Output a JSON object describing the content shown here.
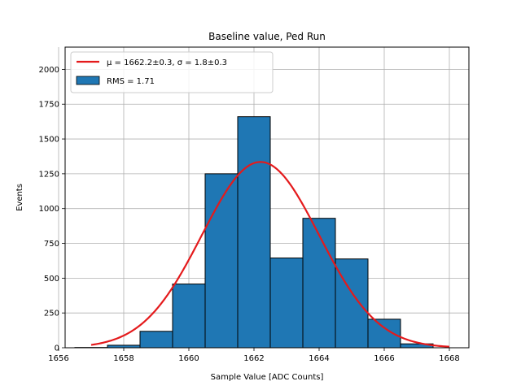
{
  "chart_data": {
    "type": "bar",
    "title": "Baseline value, Ped Run",
    "xlabel": "Sample Value [ADC Counts]",
    "ylabel": "Events",
    "xlim": [
      1656.2,
      1668.6
    ],
    "ylim": [
      0,
      2160
    ],
    "xticks": [
      1656,
      1658,
      1660,
      1662,
      1664,
      1666,
      1668
    ],
    "yticks": [
      0,
      250,
      500,
      750,
      1000,
      1250,
      1500,
      1750,
      2000
    ],
    "grid": true,
    "legend_position": "top-left",
    "histogram": {
      "name": "RMS = 1.71",
      "color": "#1f77b4",
      "edge_color": "#000000",
      "bins": [
        {
          "left": 1656.5,
          "right": 1657.5,
          "count": 2
        },
        {
          "left": 1657.5,
          "right": 1658.5,
          "count": 18
        },
        {
          "left": 1658.5,
          "right": 1659.5,
          "count": 118
        },
        {
          "left": 1659.5,
          "right": 1660.5,
          "count": 458
        },
        {
          "left": 1660.5,
          "right": 1661.5,
          "count": 1250
        },
        {
          "left": 1661.5,
          "right": 1662.5,
          "count": 1660
        },
        {
          "left": 1662.5,
          "right": 1663.5,
          "count": 645
        },
        {
          "left": 1663.5,
          "right": 1664.5,
          "count": 930
        },
        {
          "left": 1664.5,
          "right": 1665.5,
          "count": 638
        },
        {
          "left": 1665.5,
          "right": 1666.5,
          "count": 205
        },
        {
          "left": 1666.5,
          "right": 1667.5,
          "count": 28
        }
      ]
    },
    "fit": {
      "name": "μ = 1662.2±0.3, σ = 1.8±0.3",
      "color": "#e41a1c",
      "type": "gaussian",
      "amplitude": 1335,
      "mu": 1662.2,
      "sigma": 1.8,
      "x_range": [
        1657.0,
        1668.0
      ]
    }
  }
}
